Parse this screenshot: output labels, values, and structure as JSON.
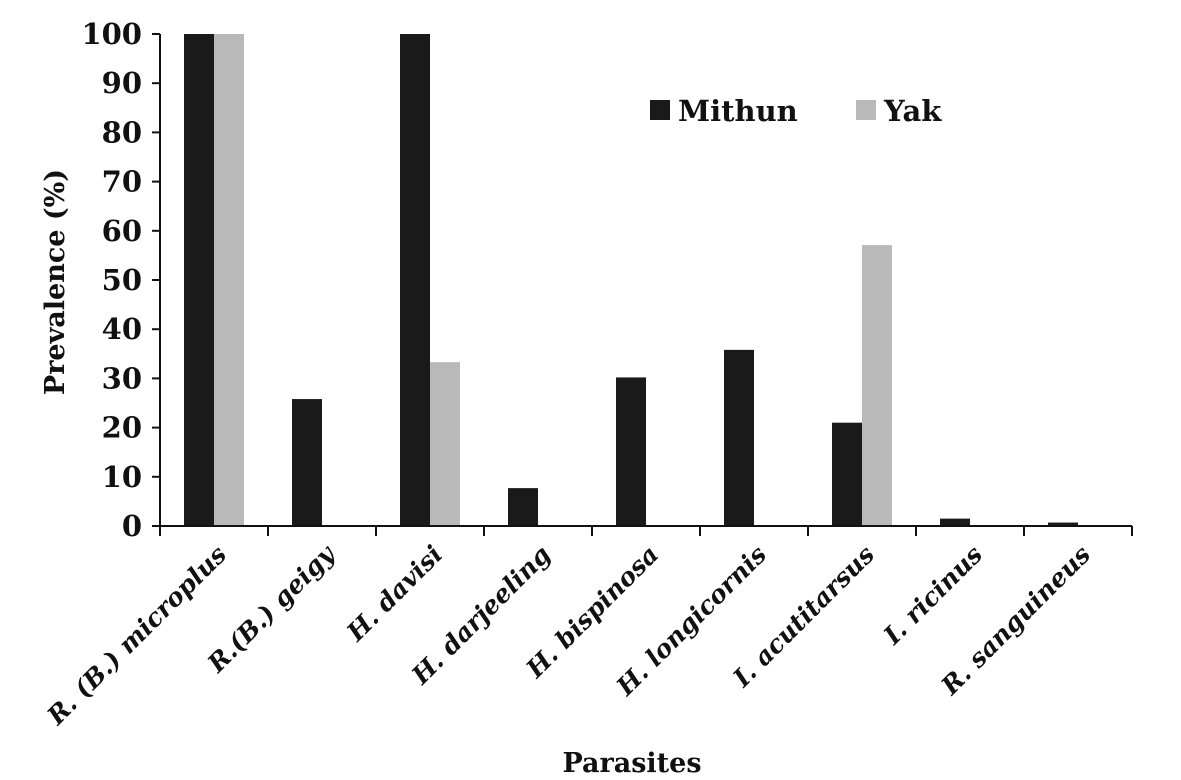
{
  "chart_data": {
    "type": "bar",
    "categories": [
      "R. (B.) microplus",
      "R.(B.) geigy",
      "H. davisi",
      "H. darjeeling",
      "H. bispinosa",
      "H. longicornis",
      "I. acutitarsus",
      "I. ricinus",
      "R. sanguineus"
    ],
    "series": [
      {
        "name": "Mithun",
        "color": "#1a1a1a",
        "values": [
          100,
          25.8,
          100,
          7.7,
          30.2,
          35.8,
          21,
          1.5,
          0.7
        ]
      },
      {
        "name": "Yak",
        "color": "#b9b9b9",
        "values": [
          100,
          0,
          33.3,
          0,
          0,
          0,
          57.1,
          0,
          0
        ]
      }
    ],
    "xlabel": "Parasites",
    "ylabel": "Prevalence (%)",
    "ylim": [
      0,
      100
    ],
    "yticks": [
      0,
      10,
      20,
      30,
      40,
      50,
      60,
      70,
      80,
      90,
      100
    ],
    "grid": false,
    "legend_position": "top-right"
  }
}
